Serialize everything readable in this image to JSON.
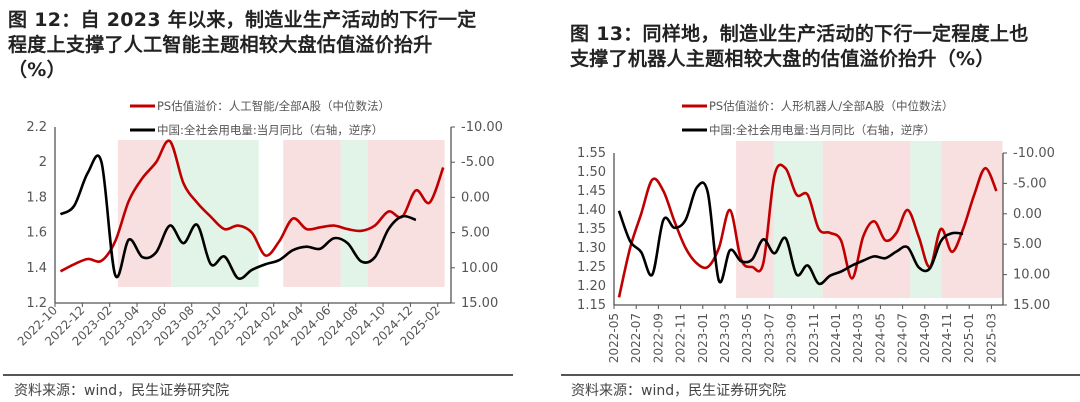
{
  "charts": [
    {
      "title_lines": [
        "图 12：自 2023 年以来，制造业生产活动的下行一定",
        "程度上支撑了人工智能主题相较大盘估值溢价抬升",
        "（%）"
      ],
      "source": "资料来源：wind，民生证券研究院",
      "legend": [
        "PS估值溢价：人工智能/全部A股（中位数法）",
        "中国:全社会用电量:当月同比（右轴，逆序）"
      ]
    },
    {
      "title_lines": [
        "图 13：同样地，制造业生产活动的下行一定程度上也",
        "支撑了机器人主题相较大盘的估值溢价抬升（%）"
      ],
      "source": "资料来源：wind，民生证券研究院",
      "legend": [
        "PS估值溢价：人形机器人/全部A股（中位数法）",
        "中国:全社会用电量:当月同比（右轴，逆序）"
      ]
    }
  ],
  "colors": {
    "red_series": "#c00000",
    "black_series": "#000000",
    "pink_band": "#f8dfe0",
    "green_band": "#e2f4e8"
  },
  "chart_data": [
    {
      "type": "line",
      "start_month": "2022-10",
      "x_ticks": [
        "2022-10",
        "2022-12",
        "2023-02",
        "2023-04",
        "2023-06",
        "2023-08",
        "2023-10",
        "2023-12",
        "2024-02",
        "2024-04",
        "2024-06",
        "2024-08",
        "2024-10",
        "2024-12",
        "2025-02"
      ],
      "x_tick_rotation": -45,
      "y_left": {
        "ticks": [
          "1.2",
          "1.4",
          "1.6",
          "1.8",
          "2",
          "2.2"
        ],
        "range": [
          1.2,
          2.2
        ]
      },
      "y_right": {
        "ticks": [
          "-10.00",
          "-5.00",
          "0.00",
          "5.00",
          "10.00",
          "15.00"
        ],
        "range": [
          -10,
          15
        ],
        "reversed": true
      },
      "series": [
        {
          "name": "PS估值溢价：人工智能/全部A股（中位数法）",
          "axis": "left",
          "color": "#c00000",
          "values": [
            1.38,
            1.42,
            1.45,
            1.44,
            1.55,
            1.78,
            1.91,
            2.0,
            2.12,
            1.88,
            1.77,
            1.69,
            1.62,
            1.64,
            1.6,
            1.47,
            1.55,
            1.68,
            1.62,
            1.63,
            1.64,
            1.62,
            1.61,
            1.64,
            1.72,
            1.69,
            1.84,
            1.77,
            1.97
          ]
        },
        {
          "name": "中国:全社会用电量:当月同比（右轴，逆序）",
          "axis": "right",
          "color": "#000000",
          "values": [
            2.4,
            1.2,
            -3.5,
            -5.0,
            11.0,
            6.0,
            8.5,
            7.8,
            4.0,
            6.5,
            3.9,
            9.5,
            8.4,
            11.5,
            10.3,
            9.5,
            8.9,
            7.5,
            7.0,
            7.3,
            5.8,
            6.5,
            9.1,
            8.5,
            4.5,
            2.7,
            3.2
          ]
        }
      ],
      "bands": [
        {
          "color": "pink",
          "from": "2023-02-19",
          "to": "2023-06-16"
        },
        {
          "color": "green",
          "from": "2023-06-16",
          "to": "2023-12-28"
        },
        {
          "color": "pink",
          "from": "2024-02-22",
          "to": "2024-06-28"
        },
        {
          "color": "green",
          "from": "2024-06-28",
          "to": "2024-08-28"
        },
        {
          "color": "pink",
          "from": "2024-08-28",
          "to": "2025-02-16"
        }
      ],
      "legend_placement": "top",
      "grid": false
    },
    {
      "type": "line",
      "start_month": "2022-05",
      "x_ticks": [
        "2022-05",
        "2022-07",
        "2022-09",
        "2022-11",
        "2023-01",
        "2023-03",
        "2023-05",
        "2023-07",
        "2023-09",
        "2023-11",
        "2024-01",
        "2024-03",
        "2024-05",
        "2024-07",
        "2024-09",
        "2024-11",
        "2025-01",
        "2025-03"
      ],
      "x_tick_rotation": -90,
      "y_left": {
        "ticks": [
          "1.15",
          "1.20",
          "1.25",
          "1.30",
          "1.35",
          "1.40",
          "1.45",
          "1.50",
          "1.55"
        ],
        "range": [
          1.15,
          1.55
        ]
      },
      "y_right": {
        "ticks": [
          "-10.00",
          "-5.00",
          "0.00",
          "5.00",
          "10.00",
          "15.00"
        ],
        "range": [
          -10,
          15
        ],
        "reversed": true
      },
      "series": [
        {
          "name": "PS估值溢价：人形机器人/全部A股（中位数法）",
          "axis": "left",
          "color": "#c00000",
          "values": [
            1.17,
            1.3,
            1.39,
            1.48,
            1.45,
            1.37,
            1.3,
            1.26,
            1.25,
            1.3,
            1.4,
            1.27,
            1.25,
            1.26,
            1.49,
            1.51,
            1.44,
            1.44,
            1.35,
            1.34,
            1.32,
            1.22,
            1.33,
            1.37,
            1.32,
            1.34,
            1.4,
            1.33,
            1.25,
            1.35,
            1.29,
            1.35,
            1.44,
            1.51,
            1.45
          ]
        },
        {
          "name": "中国:全社会用电量:当月同比（右轴，逆序）",
          "axis": "right",
          "color": "#000000",
          "values": [
            -0.5,
            4.5,
            6.3,
            10.0,
            1.0,
            2.3,
            1.0,
            -4.3,
            -3.5,
            11.0,
            6.0,
            7.8,
            7.5,
            4.2,
            6.5,
            4.0,
            10.0,
            8.5,
            11.5,
            10.2,
            9.5,
            8.5,
            7.7,
            7.0,
            7.3,
            6.2,
            5.5,
            8.8,
            9.0,
            4.5,
            3.2,
            3.3
          ]
        }
      ],
      "bands": [
        {
          "color": "pink",
          "from": "2023-04-01",
          "to": "2023-07-13"
        },
        {
          "color": "green",
          "from": "2023-07-13",
          "to": "2023-11-25"
        },
        {
          "color": "pink",
          "from": "2023-11-25",
          "to": "2024-07-22"
        },
        {
          "color": "green",
          "from": "2024-07-22",
          "to": "2024-10-16"
        },
        {
          "color": "pink",
          "from": "2024-10-16",
          "to": "2025-04-01"
        }
      ],
      "legend_placement": "top",
      "grid": false
    }
  ]
}
